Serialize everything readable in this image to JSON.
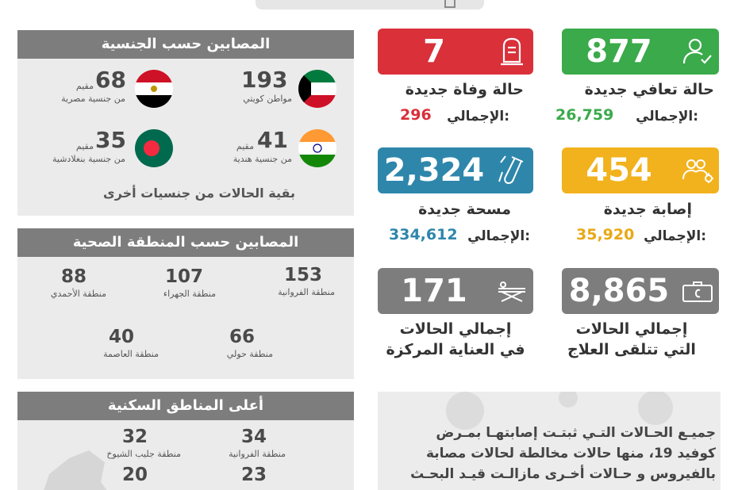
{
  "nationality": {
    "title": "المصابين حسب الجنسية",
    "items": [
      {
        "value": "193",
        "label": "مواطن كويتي",
        "flag": "kuwait-flag-icon"
      },
      {
        "value": "68",
        "label1": "مقيم",
        "label2": "من جنسية مصرية",
        "flag": "egypt-flag-icon"
      },
      {
        "value": "41",
        "label1": "مقيم",
        "label2": "من جنسية هندية",
        "flag": "india-flag-icon"
      },
      {
        "value": "35",
        "label1": "مقيم",
        "label2": "من جنسية بنغلادشية",
        "flag": "bangladesh-flag-icon"
      }
    ],
    "footer": "بقية الحالات من جنسيات أخرى"
  },
  "region": {
    "title": "المصابين حسب المنطقة الصحية",
    "items": [
      {
        "value": "153",
        "label": "منطقة الفروانية"
      },
      {
        "value": "107",
        "label": "منطقة الجهراء"
      },
      {
        "value": "88",
        "label": "منطقة الأحمدي"
      },
      {
        "value": "66",
        "label": "منطقة حولي"
      },
      {
        "value": "40",
        "label": "منطقة العاصمة"
      }
    ]
  },
  "residential": {
    "title": "أعلى المناطق السكنية",
    "items": [
      {
        "value": "34",
        "label": "منطقة الفروانية"
      },
      {
        "value": "32",
        "label": "منطقة جليب الشيوخ"
      },
      {
        "value": "23",
        "label": ""
      },
      {
        "value": "20",
        "label": ""
      }
    ]
  },
  "stats": {
    "recovered": {
      "value": "877",
      "title": "حالة تعافي جديدة",
      "total_label": "الإجمالي:",
      "total": "26,759",
      "color": "#3aaa4a",
      "total_color": "#3aaa4a",
      "icon": "user-check-icon"
    },
    "deaths": {
      "value": "7",
      "title": "حالة وفاة جديدة",
      "total_label": "الإجمالي:",
      "total": "296",
      "color": "#d9303a",
      "total_color": "#d9303a",
      "icon": "tombstone-icon"
    },
    "infections": {
      "value": "454",
      "title": "إصابة جديدة",
      "total_label": "الإجمالي:",
      "total": "35,920",
      "color": "#f2b21d",
      "total_color": "#e8a815",
      "icon": "group-virus-icon"
    },
    "swabs": {
      "value": "2,324",
      "title": "مسحة جديدة",
      "total_label": "الإجمالي:",
      "total": "334,612",
      "color": "#2e86ab",
      "total_color": "#2e86ab",
      "icon": "test-tube-icon"
    },
    "treatment": {
      "value": "8,865",
      "title1": "إجمالي الحالات",
      "title2": "التي تتلقى العلاج",
      "color": "#7d7d7d",
      "icon": "medical-case-icon"
    },
    "icu": {
      "value": "171",
      "title1": "إجمالي الحالات",
      "title2": "في العناية المركزة",
      "color": "#7d7d7d",
      "icon": "stretcher-icon"
    }
  },
  "note": {
    "line1": "جميـع الحـالات التـي ثبتـت إصابتهـا بمـرض",
    "line2": "كوفيد 19، منها حالات مخالطة لحالات مصابة",
    "line3": "بالفيروس و حـالات أخـرى مازالـت قيـد البحـث"
  }
}
